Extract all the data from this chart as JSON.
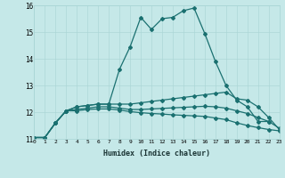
{
  "xlabel": "Humidex (Indice chaleur)",
  "background_color": "#c5e8e8",
  "line_color": "#1a7070",
  "xlim": [
    0,
    23
  ],
  "ylim": [
    11,
    16
  ],
  "xticks": [
    0,
    1,
    2,
    3,
    4,
    5,
    6,
    7,
    8,
    9,
    10,
    11,
    12,
    13,
    14,
    15,
    16,
    17,
    18,
    19,
    20,
    21,
    22,
    23
  ],
  "yticks": [
    11,
    12,
    13,
    14,
    15,
    16
  ],
  "line1_x": [
    0,
    1,
    2,
    3,
    4,
    5,
    6,
    7,
    8,
    9,
    10,
    11,
    12,
    13,
    14,
    15,
    16,
    17,
    18,
    19,
    20,
    21,
    22
  ],
  "line1_y": [
    11.05,
    11.05,
    11.6,
    12.05,
    12.2,
    12.25,
    12.3,
    12.3,
    13.6,
    14.45,
    15.55,
    15.1,
    15.5,
    15.55,
    15.8,
    15.9,
    14.95,
    13.9,
    13.0,
    12.45,
    12.2,
    11.65,
    11.65
  ],
  "line2_x": [
    0,
    1,
    2,
    3,
    4,
    5,
    6,
    7,
    8,
    9,
    10,
    11,
    12,
    13,
    14,
    15,
    16,
    17,
    18,
    19,
    20,
    21,
    22,
    23
  ],
  "line2_y": [
    11.05,
    11.05,
    11.6,
    12.05,
    12.2,
    12.25,
    12.3,
    12.3,
    12.3,
    12.3,
    12.35,
    12.4,
    12.45,
    12.5,
    12.55,
    12.6,
    12.65,
    12.7,
    12.75,
    12.5,
    12.45,
    12.2,
    11.8,
    11.35
  ],
  "line3_x": [
    0,
    1,
    2,
    3,
    4,
    5,
    6,
    7,
    8,
    9,
    10,
    11,
    12,
    13,
    14,
    15,
    16,
    17,
    18,
    19,
    20,
    21,
    22,
    23
  ],
  "line3_y": [
    11.05,
    11.05,
    11.6,
    12.05,
    12.1,
    12.15,
    12.2,
    12.2,
    12.15,
    12.1,
    12.1,
    12.12,
    12.14,
    12.16,
    12.18,
    12.2,
    12.22,
    12.2,
    12.15,
    12.05,
    11.95,
    11.8,
    11.65,
    11.4
  ],
  "line4_x": [
    0,
    1,
    2,
    3,
    4,
    5,
    6,
    7,
    8,
    9,
    10,
    11,
    12,
    13,
    14,
    15,
    16,
    17,
    18,
    19,
    20,
    21,
    22,
    23
  ],
  "line4_y": [
    11.05,
    11.05,
    11.6,
    12.05,
    12.05,
    12.1,
    12.12,
    12.12,
    12.08,
    12.02,
    11.98,
    11.95,
    11.93,
    11.9,
    11.88,
    11.86,
    11.84,
    11.78,
    11.72,
    11.6,
    11.5,
    11.42,
    11.35,
    11.3
  ]
}
